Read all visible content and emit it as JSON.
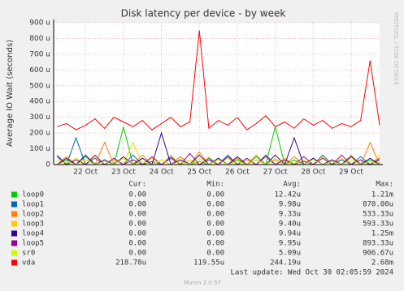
{
  "chart_data": {
    "type": "line",
    "title": "Disk latency per device - by week",
    "y_label": "Average IO Wait (seconds)",
    "side_text": "RRDTOOL / TOBI OETIKER",
    "x": [
      21.25,
      21.5,
      21.75,
      22,
      22.25,
      22.5,
      22.75,
      23,
      23.25,
      23.5,
      23.75,
      24,
      24.25,
      24.5,
      24.75,
      25,
      25.25,
      25.5,
      25.75,
      26,
      26.25,
      26.5,
      26.75,
      27,
      27.25,
      27.5,
      27.75,
      28,
      28.25,
      28.5,
      28.75,
      29,
      29.25,
      29.5,
      29.75
    ],
    "xlim": [
      21.16,
      29.75
    ],
    "xticks": [
      {
        "value": 22,
        "label": "22 Oct"
      },
      {
        "value": 23,
        "label": "23 Oct"
      },
      {
        "value": 24,
        "label": "24 Oct"
      },
      {
        "value": 25,
        "label": "25 Oct"
      },
      {
        "value": 26,
        "label": "26 Oct"
      },
      {
        "value": 27,
        "label": "27 Oct"
      },
      {
        "value": 28,
        "label": "28 Oct"
      },
      {
        "value": 29,
        "label": "29 Oct"
      }
    ],
    "ylim": [
      0,
      900
    ],
    "yticks": [
      0,
      {
        "value": 100,
        "label": "100 u"
      },
      {
        "value": 200,
        "label": "200 u"
      },
      {
        "value": 300,
        "label": "300 u"
      },
      {
        "value": 400,
        "label": "400 u"
      },
      {
        "value": 500,
        "label": "500 u"
      },
      {
        "value": 600,
        "label": "600 u"
      },
      {
        "value": 700,
        "label": "700 u"
      },
      {
        "value": 800,
        "label": "800 u"
      },
      {
        "value": 900,
        "label": "900 u"
      }
    ],
    "grid": true,
    "columns": [
      "Cur:",
      "Min:",
      "Avg:",
      "Max:"
    ],
    "series": [
      {
        "name": "loop0",
        "color": "#00cc00",
        "values": [
          0,
          30,
          0,
          50,
          0,
          20,
          0,
          240,
          0,
          40,
          0,
          30,
          0,
          50,
          0,
          20,
          0,
          40,
          0,
          30,
          0,
          50,
          0,
          240,
          0,
          30,
          0,
          40,
          0,
          20,
          0,
          50,
          0,
          30,
          0
        ],
        "stats": [
          "0.00",
          "0.00",
          "12.42u",
          "1.21m"
        ]
      },
      {
        "name": "loop1",
        "color": "#0066b3",
        "values": [
          60,
          0,
          170,
          0,
          40,
          0,
          30,
          0,
          60,
          0,
          20,
          0,
          50,
          0,
          30,
          0,
          40,
          0,
          60,
          0,
          30,
          0,
          50,
          0,
          40,
          0,
          20,
          0,
          60,
          0,
          30,
          0,
          50,
          0,
          30
        ],
        "stats": [
          "0.00",
          "0.00",
          "9.98u",
          "870.00u"
        ]
      },
      {
        "name": "loop2",
        "color": "#ff8000",
        "values": [
          0,
          50,
          0,
          30,
          0,
          140,
          0,
          40,
          0,
          60,
          0,
          30,
          0,
          50,
          0,
          80,
          0,
          30,
          0,
          40,
          0,
          60,
          0,
          30,
          0,
          50,
          0,
          40,
          0,
          30,
          0,
          60,
          0,
          140,
          0
        ],
        "stats": [
          "0.00",
          "0.00",
          "9.33u",
          "533.33u"
        ]
      },
      {
        "name": "loop3",
        "color": "#ffcc00",
        "values": [
          30,
          0,
          40,
          0,
          50,
          0,
          30,
          0,
          140,
          0,
          40,
          0,
          60,
          0,
          30,
          0,
          50,
          0,
          40,
          0,
          30,
          0,
          60,
          0,
          40,
          0,
          30,
          0,
          50,
          0,
          40,
          0,
          30,
          0,
          60
        ],
        "stats": [
          "0.00",
          "0.00",
          "9.40u",
          "593.33u"
        ]
      },
      {
        "name": "loop4",
        "color": "#330099",
        "values": [
          0,
          40,
          0,
          60,
          0,
          30,
          0,
          50,
          0,
          40,
          0,
          200,
          0,
          30,
          0,
          60,
          0,
          40,
          0,
          50,
          0,
          30,
          0,
          60,
          0,
          170,
          0,
          40,
          0,
          30,
          0,
          50,
          0,
          40,
          0
        ],
        "stats": [
          "0.00",
          "0.00",
          "9.94u",
          "1.25m"
        ]
      },
      {
        "name": "loop5",
        "color": "#990099",
        "values": [
          50,
          0,
          30,
          0,
          60,
          0,
          40,
          0,
          30,
          0,
          50,
          0,
          40,
          0,
          70,
          0,
          30,
          0,
          50,
          0,
          40,
          0,
          60,
          0,
          30,
          0,
          50,
          0,
          40,
          0,
          60,
          0,
          30,
          0,
          40
        ],
        "stats": [
          "0.00",
          "0.00",
          "9.95u",
          "893.33u"
        ]
      },
      {
        "name": "sr0",
        "color": "#ccff00",
        "values": [
          0,
          20,
          0,
          30,
          0,
          20,
          0,
          40,
          0,
          20,
          0,
          30,
          0,
          20,
          0,
          40,
          0,
          30,
          0,
          20,
          0,
          30,
          0,
          40,
          0,
          20,
          0,
          30,
          0,
          20,
          0,
          30,
          0,
          20,
          0
        ],
        "stats": [
          "0.00",
          "0.00",
          "5.09u",
          "906.67u"
        ]
      },
      {
        "name": "vda",
        "color": "#ff0000",
        "values": [
          240,
          260,
          220,
          250,
          290,
          230,
          300,
          270,
          240,
          280,
          220,
          260,
          300,
          240,
          270,
          850,
          230,
          280,
          250,
          300,
          220,
          260,
          310,
          240,
          270,
          230,
          290,
          250,
          280,
          230,
          260,
          240,
          280,
          660,
          250
        ],
        "stats": [
          "218.78u",
          "119.55u",
          "244.19u",
          "2.68m"
        ]
      }
    ],
    "last_update": "Last update: Wed Oct 30 02:05:59 2024",
    "footer": "Munin 2.0.57"
  }
}
